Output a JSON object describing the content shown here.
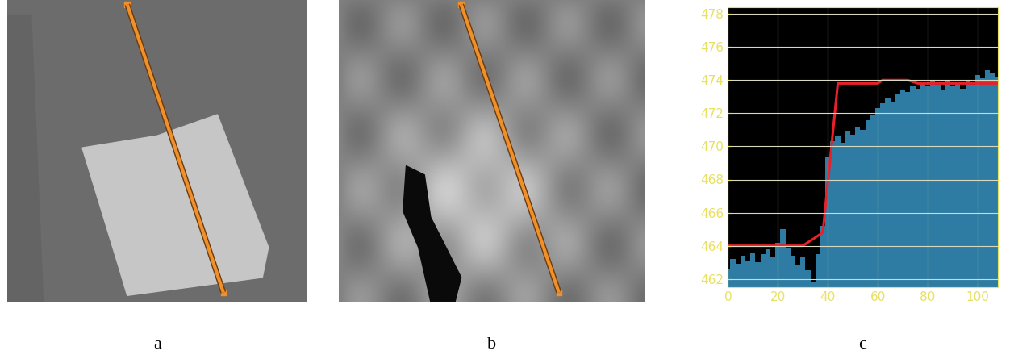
{
  "chart_data": [
    {
      "type": "image",
      "caption": "a"
    },
    {
      "type": "image",
      "caption": "b"
    },
    {
      "type": "line",
      "caption": "c",
      "series": [
        {
          "type": "area",
          "color": "#2e7ca4",
          "x": [
            0,
            2,
            4,
            6,
            8,
            10,
            12,
            14,
            16,
            18,
            20,
            22,
            24,
            26,
            28,
            30,
            32,
            34,
            36,
            38,
            40,
            42,
            44,
            46,
            48,
            50,
            52,
            54,
            56,
            58,
            60,
            62,
            64,
            66,
            68,
            70,
            72,
            74,
            76,
            78,
            80,
            82,
            84,
            86,
            88,
            90,
            92,
            94,
            96,
            98,
            100,
            102,
            104,
            106,
            108
          ],
          "values": [
            462.6,
            463.2,
            462.9,
            463.4,
            463.1,
            463.6,
            463.0,
            463.5,
            463.8,
            463.3,
            464.2,
            465.0,
            463.9,
            463.4,
            462.8,
            463.3,
            462.5,
            461.8,
            463.5,
            465.2,
            469.4,
            470.3,
            470.6,
            470.2,
            470.9,
            470.7,
            471.2,
            471.0,
            471.6,
            471.9,
            472.3,
            472.6,
            472.9,
            472.7,
            473.2,
            473.4,
            473.3,
            473.6,
            473.5,
            473.8,
            473.6,
            473.9,
            473.7,
            473.4,
            473.9,
            473.6,
            473.8,
            473.5,
            474.0,
            473.7,
            474.3,
            474.1,
            474.6,
            474.4,
            474.2
          ]
        },
        {
          "type": "line",
          "color": "#e8202a",
          "x": [
            0,
            30,
            38,
            44,
            60,
            62,
            72,
            76,
            108
          ],
          "values": [
            464,
            464,
            464.8,
            473.8,
            473.8,
            474,
            474,
            473.8,
            473.8
          ]
        }
      ],
      "xlim": [
        0,
        108
      ],
      "ylim": [
        461.5,
        478.4
      ],
      "xticks": [
        0,
        20,
        40,
        60,
        80,
        100
      ],
      "yticks": [
        462,
        464,
        466,
        468,
        470,
        472,
        474,
        476,
        478
      ],
      "grid": true
    }
  ]
}
